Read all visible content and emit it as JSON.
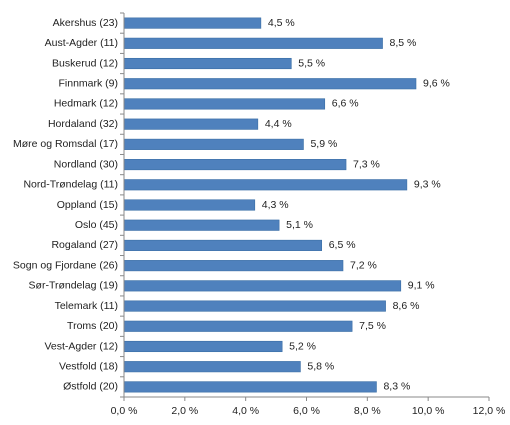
{
  "chart_data": {
    "type": "bar",
    "orientation": "horizontal",
    "categories": [
      "Akershus (23)",
      "Aust-Agder (11)",
      "Buskerud (12)",
      "Finnmark (9)",
      "Hedmark (12)",
      "Hordaland (32)",
      "Møre og Romsdal (17)",
      "Nordland (30)",
      "Nord-Trøndelag (11)",
      "Oppland (15)",
      "Oslo (45)",
      "Rogaland (27)",
      "Sogn og Fjordane (26)",
      "Sør-Trøndelag (19)",
      "Telemark (11)",
      "Troms (20)",
      "Vest-Agder (12)",
      "Vestfold (18)",
      "Østfold (20)"
    ],
    "values": [
      4.5,
      8.5,
      5.5,
      9.6,
      6.6,
      4.4,
      5.9,
      7.3,
      9.3,
      4.3,
      5.1,
      6.5,
      7.2,
      9.1,
      8.6,
      7.5,
      5.2,
      5.8,
      8.3
    ],
    "data_labels": [
      "4,5 %",
      "8,5 %",
      "5,5 %",
      "9,6 %",
      "6,6 %",
      "4,4 %",
      "5,9 %",
      "7,3 %",
      "9,3 %",
      "4,3 %",
      "5,1 %",
      "6,5 %",
      "7,2 %",
      "9,1 %",
      "8,6 %",
      "7,5 %",
      "5,2 %",
      "5,8 %",
      "8,3 %"
    ],
    "xlim": [
      0,
      12
    ],
    "xticks": [
      0,
      2,
      4,
      6,
      8,
      10,
      12
    ],
    "xtick_labels": [
      "0,0 %",
      "2,0 %",
      "4,0 %",
      "6,0 %",
      "8,0 %",
      "10,0 %",
      "12,0 %"
    ],
    "title": "",
    "xlabel": "",
    "ylabel": "",
    "grid": false,
    "legend": "none",
    "bar_color": "#4f81bd",
    "bar_edge_color": "#3a6ea5"
  }
}
